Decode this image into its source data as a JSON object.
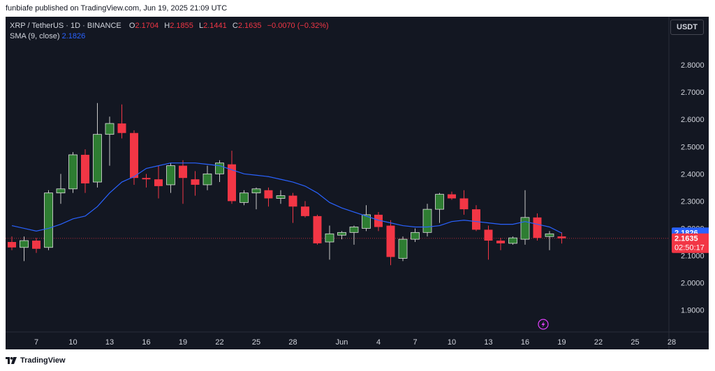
{
  "header": {
    "published_text": "funbiafe published on TradingView.com, Jun 19, 2025 21:09 UTC"
  },
  "legend": {
    "symbol": "XRP / TetherUS · 1D · BINANCE",
    "o_label": "O",
    "o_value": "2.1704",
    "h_label": "H",
    "h_value": "2.1855",
    "l_label": "L",
    "l_value": "2.1441",
    "c_label": "C",
    "c_value": "2.1635",
    "change": "−0.0070 (−0.32%)",
    "sma_label": "SMA (9, close)",
    "sma_value": "2.1826"
  },
  "currency_button": "USDT",
  "footer": {
    "brand": "TradingView"
  },
  "colors": {
    "background": "#131722",
    "up": "#26a69a",
    "up_body": "#2e7d32",
    "down": "#f23645",
    "sma": "#2962ff",
    "axis_text": "#d1d4dc"
  },
  "chart_data": {
    "type": "candlestick",
    "title": "",
    "ylim": [
      1.83,
      2.9
    ],
    "y_ticks": [
      "2.8000",
      "2.7000",
      "2.6000",
      "2.5000",
      "2.4000",
      "2.3000",
      "2.2000",
      "2.1000",
      "2.0000",
      "1.9000"
    ],
    "y_tick_values": [
      2.8,
      2.7,
      2.6,
      2.5,
      2.4,
      2.3,
      2.2,
      2.1,
      2.0,
      1.9
    ],
    "x_ticks": [
      {
        "label": "7",
        "index": 2
      },
      {
        "label": "10",
        "index": 5
      },
      {
        "label": "13",
        "index": 8
      },
      {
        "label": "16",
        "index": 11
      },
      {
        "label": "19",
        "index": 14
      },
      {
        "label": "22",
        "index": 17
      },
      {
        "label": "25",
        "index": 20
      },
      {
        "label": "28",
        "index": 23
      },
      {
        "label": "Jun",
        "index": 27
      },
      {
        "label": "4",
        "index": 30
      },
      {
        "label": "7",
        "index": 33
      },
      {
        "label": "10",
        "index": 36
      },
      {
        "label": "13",
        "index": 39
      },
      {
        "label": "16",
        "index": 42
      },
      {
        "label": "19",
        "index": 45
      },
      {
        "label": "22",
        "index": 48
      },
      {
        "label": "25",
        "index": 51
      },
      {
        "label": "28",
        "index": 54
      }
    ],
    "candles": [
      {
        "o": 2.15,
        "h": 2.17,
        "l": 2.12,
        "c": 2.13
      },
      {
        "o": 2.13,
        "h": 2.17,
        "l": 2.08,
        "c": 2.155
      },
      {
        "o": 2.155,
        "h": 2.165,
        "l": 2.11,
        "c": 2.125
      },
      {
        "o": 2.13,
        "h": 2.34,
        "l": 2.12,
        "c": 2.33
      },
      {
        "o": 2.33,
        "h": 2.4,
        "l": 2.29,
        "c": 2.345
      },
      {
        "o": 2.345,
        "h": 2.48,
        "l": 2.33,
        "c": 2.47
      },
      {
        "o": 2.47,
        "h": 2.49,
        "l": 2.33,
        "c": 2.365
      },
      {
        "o": 2.37,
        "h": 2.66,
        "l": 2.35,
        "c": 2.545
      },
      {
        "o": 2.545,
        "h": 2.61,
        "l": 2.43,
        "c": 2.585
      },
      {
        "o": 2.585,
        "h": 2.655,
        "l": 2.53,
        "c": 2.55
      },
      {
        "o": 2.55,
        "h": 2.56,
        "l": 2.36,
        "c": 2.385
      },
      {
        "o": 2.385,
        "h": 2.4,
        "l": 2.35,
        "c": 2.38
      },
      {
        "o": 2.38,
        "h": 2.43,
        "l": 2.31,
        "c": 2.355
      },
      {
        "o": 2.36,
        "h": 2.44,
        "l": 2.33,
        "c": 2.43
      },
      {
        "o": 2.43,
        "h": 2.45,
        "l": 2.29,
        "c": 2.385
      },
      {
        "o": 2.38,
        "h": 2.41,
        "l": 2.32,
        "c": 2.36
      },
      {
        "o": 2.36,
        "h": 2.43,
        "l": 2.34,
        "c": 2.4
      },
      {
        "o": 2.4,
        "h": 2.45,
        "l": 2.37,
        "c": 2.44
      },
      {
        "o": 2.435,
        "h": 2.485,
        "l": 2.29,
        "c": 2.3
      },
      {
        "o": 2.295,
        "h": 2.34,
        "l": 2.285,
        "c": 2.33
      },
      {
        "o": 2.33,
        "h": 2.35,
        "l": 2.27,
        "c": 2.345
      },
      {
        "o": 2.34,
        "h": 2.35,
        "l": 2.28,
        "c": 2.31
      },
      {
        "o": 2.31,
        "h": 2.34,
        "l": 2.29,
        "c": 2.32
      },
      {
        "o": 2.32,
        "h": 2.33,
        "l": 2.22,
        "c": 2.28
      },
      {
        "o": 2.28,
        "h": 2.3,
        "l": 2.24,
        "c": 2.245
      },
      {
        "o": 2.245,
        "h": 2.25,
        "l": 2.14,
        "c": 2.145
      },
      {
        "o": 2.15,
        "h": 2.21,
        "l": 2.085,
        "c": 2.18
      },
      {
        "o": 2.175,
        "h": 2.19,
        "l": 2.16,
        "c": 2.185
      },
      {
        "o": 2.185,
        "h": 2.21,
        "l": 2.14,
        "c": 2.205
      },
      {
        "o": 2.2,
        "h": 2.285,
        "l": 2.19,
        "c": 2.25
      },
      {
        "o": 2.25,
        "h": 2.26,
        "l": 2.19,
        "c": 2.205
      },
      {
        "o": 2.21,
        "h": 2.23,
        "l": 2.065,
        "c": 2.095
      },
      {
        "o": 2.09,
        "h": 2.17,
        "l": 2.08,
        "c": 2.16
      },
      {
        "o": 2.16,
        "h": 2.2,
        "l": 2.15,
        "c": 2.185
      },
      {
        "o": 2.185,
        "h": 2.29,
        "l": 2.17,
        "c": 2.27
      },
      {
        "o": 2.27,
        "h": 2.33,
        "l": 2.22,
        "c": 2.325
      },
      {
        "o": 2.325,
        "h": 2.335,
        "l": 2.305,
        "c": 2.31
      },
      {
        "o": 2.31,
        "h": 2.34,
        "l": 2.25,
        "c": 2.27
      },
      {
        "o": 2.27,
        "h": 2.285,
        "l": 2.19,
        "c": 2.195
      },
      {
        "o": 2.195,
        "h": 2.21,
        "l": 2.085,
        "c": 2.155
      },
      {
        "o": 2.155,
        "h": 2.165,
        "l": 2.12,
        "c": 2.145
      },
      {
        "o": 2.145,
        "h": 2.17,
        "l": 2.14,
        "c": 2.165
      },
      {
        "o": 2.16,
        "h": 2.34,
        "l": 2.14,
        "c": 2.24
      },
      {
        "o": 2.24,
        "h": 2.255,
        "l": 2.155,
        "c": 2.165
      },
      {
        "o": 2.17,
        "h": 2.19,
        "l": 2.12,
        "c": 2.18
      },
      {
        "o": 2.1704,
        "h": 2.1855,
        "l": 2.1441,
        "c": 2.1635
      }
    ],
    "sma": {
      "name": "SMA (9, close)",
      "start_index": 0,
      "values": [
        2.21,
        2.2,
        2.19,
        2.2,
        2.215,
        2.235,
        2.245,
        2.28,
        2.33,
        2.37,
        2.39,
        2.42,
        2.43,
        2.44,
        2.44,
        2.44,
        2.435,
        2.43,
        2.415,
        2.4,
        2.395,
        2.39,
        2.38,
        2.37,
        2.355,
        2.33,
        2.295,
        2.275,
        2.26,
        2.245,
        2.23,
        2.22,
        2.21,
        2.205,
        2.205,
        2.21,
        2.225,
        2.23,
        2.225,
        2.22,
        2.215,
        2.215,
        2.225,
        2.215,
        2.205,
        2.1826
      ]
    },
    "price_labels": [
      {
        "text": "2.1826",
        "value": 2.1826,
        "color": "#2962ff"
      },
      {
        "text": "2.1635",
        "value": 2.1635,
        "color": "#f23645",
        "sub": "02:50:17"
      }
    ],
    "current_price": 2.1635
  }
}
